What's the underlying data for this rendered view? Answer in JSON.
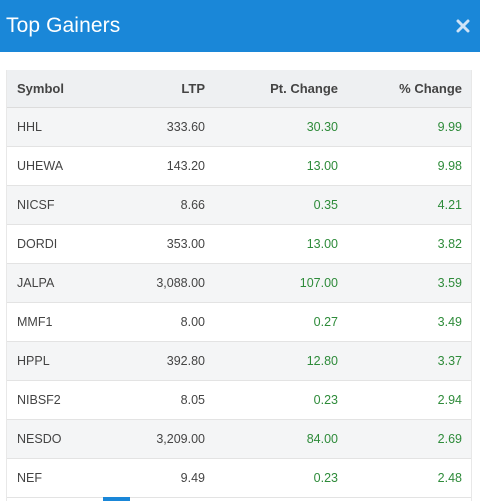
{
  "header": {
    "title": "Top Gainers",
    "close_icon": "close-icon"
  },
  "table": {
    "columns": [
      "Symbol",
      "LTP",
      "Pt. Change",
      "% Change"
    ],
    "rows": [
      {
        "symbol": "HHL",
        "ltp": "333.60",
        "pt": "30.30",
        "pct": "9.99"
      },
      {
        "symbol": "UHEWA",
        "ltp": "143.20",
        "pt": "13.00",
        "pct": "9.98"
      },
      {
        "symbol": "NICSF",
        "ltp": "8.66",
        "pt": "0.35",
        "pct": "4.21"
      },
      {
        "symbol": "DORDI",
        "ltp": "353.00",
        "pt": "13.00",
        "pct": "3.82"
      },
      {
        "symbol": "JALPA",
        "ltp": "3,088.00",
        "pt": "107.00",
        "pct": "3.59"
      },
      {
        "symbol": "MMF1",
        "ltp": "8.00",
        "pt": "0.27",
        "pct": "3.49"
      },
      {
        "symbol": "HPPL",
        "ltp": "392.80",
        "pt": "12.80",
        "pct": "3.37"
      },
      {
        "symbol": "NIBSF2",
        "ltp": "8.05",
        "pt": "0.23",
        "pct": "2.94"
      },
      {
        "symbol": "NESDO",
        "ltp": "3,209.00",
        "pt": "84.00",
        "pct": "2.69"
      },
      {
        "symbol": "NEF",
        "ltp": "9.49",
        "pt": "0.23",
        "pct": "2.48"
      }
    ]
  },
  "colors": {
    "header_bg": "#1a87d8",
    "positive": "#2e8b3a"
  }
}
